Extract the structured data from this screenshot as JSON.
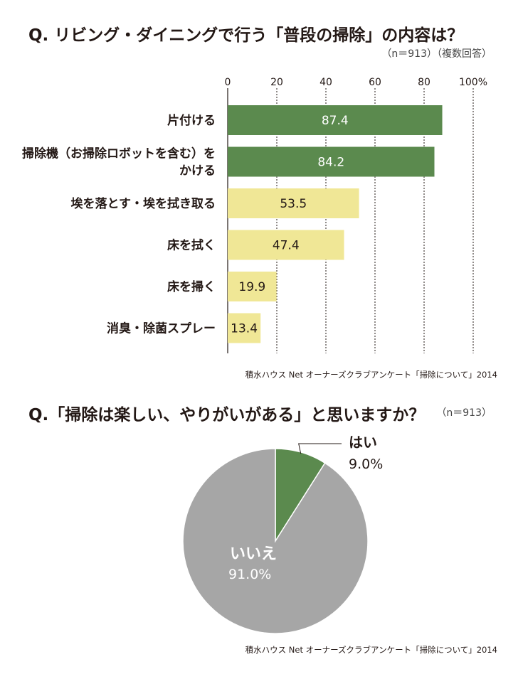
{
  "chart_data": [
    {
      "type": "bar",
      "orientation": "horizontal",
      "title": "Q. リビング・ダイニングで行う「普段の掃除」の内容は？",
      "subtitle": "（n＝913）（複数回答）",
      "categories": [
        "片付ける",
        "掃除機（お掃除ロボットを含む）をかける",
        "埃を落とす・埃を拭き取る",
        "床を拭く",
        "床を掃く",
        "消臭・除菌スプレー"
      ],
      "category_lines": [
        [
          "片付ける"
        ],
        [
          "掃除機（お掃除ロボットを含む）を",
          "かける"
        ],
        [
          "埃を落とす・埃を拭き取る"
        ],
        [
          "床を拭く"
        ],
        [
          "床を掃く"
        ],
        [
          "消臭・除菌スプレー"
        ]
      ],
      "values": [
        87.4,
        84.2,
        53.5,
        47.4,
        19.9,
        13.4
      ],
      "value_labels": [
        "87.4",
        "84.2",
        "53.5",
        "47.4",
        "19.9",
        "13.4"
      ],
      "bar_colors": [
        "#5b8a4e",
        "#5b8a4e",
        "#f0e796",
        "#f0e796",
        "#f0e796",
        "#f0e796"
      ],
      "label_colors": [
        "#ffffff",
        "#ffffff",
        "#231815",
        "#231815",
        "#231815",
        "#231815"
      ],
      "xlim": [
        0,
        100
      ],
      "ticks": [
        "0",
        "20",
        "40",
        "60",
        "80",
        "100%"
      ],
      "grid": true,
      "source": "積水ハウス Net オーナーズクラブアンケート「掃除について」2014"
    },
    {
      "type": "pie",
      "title": "Q.「掃除は楽しい、やりがいがある」と思いますか？",
      "subtitle": "（n＝913）",
      "slices": [
        {
          "label": "はい",
          "value": 9.0,
          "value_label": "9.0%",
          "color": "#5b8a4e"
        },
        {
          "label": "いいえ",
          "value": 91.0,
          "value_label": "91.0%",
          "color": "#a6a6a6"
        }
      ],
      "source": "積水ハウス Net オーナーズクラブアンケート「掃除について」2014"
    }
  ]
}
